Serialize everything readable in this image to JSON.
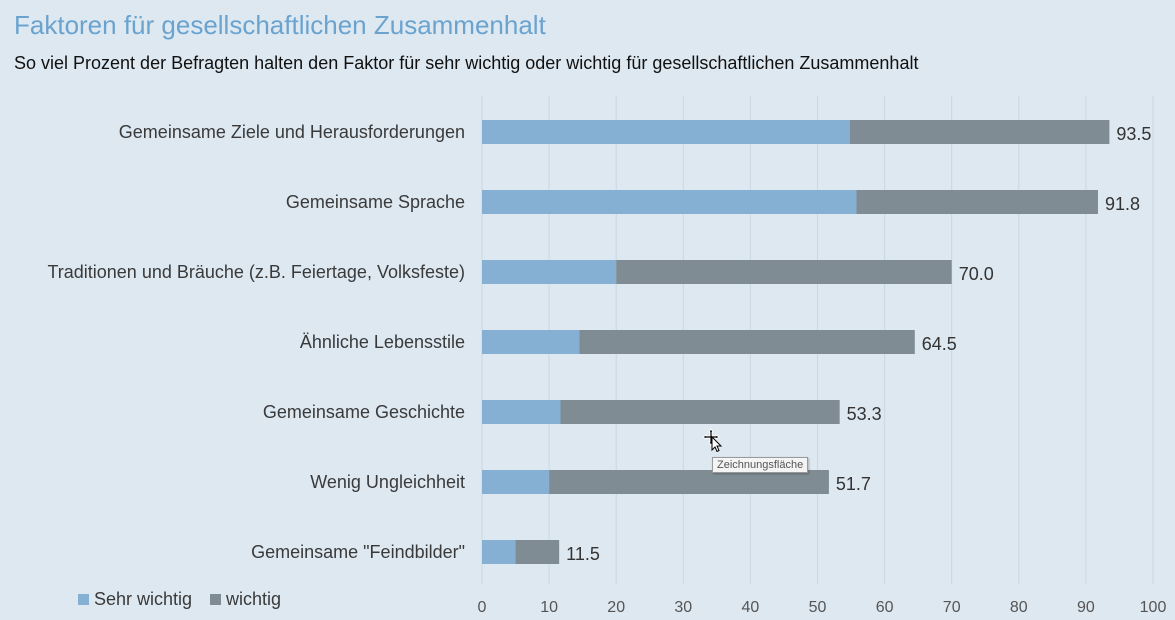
{
  "chart_data": {
    "type": "bar",
    "orientation": "horizontal",
    "stacked": true,
    "title": "Faktoren für gesellschaftlichen Zusammenhalt",
    "subtitle": "So viel Prozent der Befragten halten den Faktor für sehr wichtig oder wichtig für gesellschaftlichen Zusammenhalt",
    "categories": [
      "Gemeinsame Ziele und Herausforderungen",
      "Gemeinsame Sprache",
      "Traditionen und Bräuche (z.B. Feiertage, Volksfeste)",
      "Ähnliche Lebensstile",
      "Gemeinsame Geschichte",
      "Wenig Ungleichheit",
      "Gemeinsame \"Feindbilder\""
    ],
    "series": [
      {
        "name": "Sehr wichtig",
        "color": "#85b0d3",
        "values": [
          54.8,
          55.8,
          20.0,
          14.5,
          11.7,
          10.0,
          5.0
        ]
      },
      {
        "name": "wichtig",
        "color": "#7f8c94",
        "values": [
          38.7,
          36.0,
          50.0,
          50.0,
          41.6,
          41.7,
          6.5
        ]
      }
    ],
    "totals": [
      "93.5",
      "91.8",
      "70.0",
      "64.5",
      "53.3",
      "51.7",
      "11.5"
    ],
    "xlim": [
      0,
      100
    ],
    "xticks": [
      "0",
      "10",
      "20",
      "30",
      "40",
      "50",
      "60",
      "70",
      "80",
      "90",
      "100"
    ],
    "grid": "vertical",
    "legend_position": "bottom-left"
  },
  "tooltip": {
    "text": "Zeichnungsfläche"
  },
  "cursor": {
    "icon": "move-cursor-icon"
  }
}
